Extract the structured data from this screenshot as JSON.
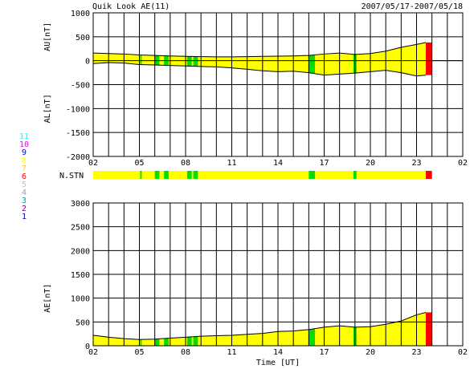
{
  "header": {
    "title": "Quik Look AE(11)",
    "date_range": "2007/05/17-2007/05/18"
  },
  "station_legend": {
    "levels": [
      "11",
      "10",
      "9",
      "8",
      "7",
      "6",
      "5",
      "4",
      "3",
      "2",
      "1"
    ],
    "colors": [
      "#00ffff",
      "#ff00ff",
      "#0000ff",
      "#ffff00",
      "#ffbf40",
      "#ff0000",
      "#c0c0c0",
      "#a0a0a0",
      "#00a0a0",
      "#800080",
      "#0000a0"
    ]
  },
  "colors": {
    "fill": "#ffff00",
    "green": "#00e000",
    "red": "#ff0000",
    "grid": "#000000"
  },
  "chart_data": [
    {
      "type": "area",
      "panel": "AU/AL",
      "ylabel_top": "AU[nT]",
      "ylabel_bottom": "AL[nT]",
      "ylim": [
        -2000,
        1000
      ],
      "yticks": [
        1000,
        500,
        0,
        -500,
        -1000,
        -1500,
        -2000
      ],
      "xticks": [
        "02",
        "05",
        "08",
        "11",
        "14",
        "17",
        "20",
        "23",
        "02"
      ],
      "x_hours_from_0200": [
        0,
        1,
        2,
        3,
        4,
        5,
        6,
        7,
        8,
        9,
        10,
        11,
        12,
        13,
        14,
        15,
        16,
        17,
        18,
        19,
        20,
        21,
        21.6
      ],
      "au": [
        160,
        150,
        140,
        120,
        110,
        100,
        90,
        85,
        80,
        80,
        85,
        90,
        95,
        100,
        110,
        140,
        160,
        130,
        150,
        200,
        280,
        340,
        380
      ],
      "al": [
        -60,
        -40,
        -50,
        -80,
        -90,
        -100,
        -110,
        -120,
        -130,
        -150,
        -180,
        -210,
        -230,
        -220,
        -250,
        -300,
        -280,
        -260,
        -230,
        -200,
        -250,
        -320,
        -300
      ]
    },
    {
      "type": "bar",
      "panel": "N.STN",
      "label": "N.STN",
      "segments": [
        {
          "start": 0,
          "end": 3.05,
          "level": "8"
        },
        {
          "start": 3.05,
          "end": 3.15,
          "level": "7"
        },
        {
          "start": 4.0,
          "end": 4.3,
          "level": "7"
        },
        {
          "start": 4.6,
          "end": 4.9,
          "level": "7"
        },
        {
          "start": 6.1,
          "end": 6.4,
          "level": "7"
        },
        {
          "start": 6.5,
          "end": 6.8,
          "level": "7"
        },
        {
          "start": 14.0,
          "end": 14.4,
          "level": "7"
        },
        {
          "start": 16.9,
          "end": 17.1,
          "level": "7"
        },
        {
          "start": 21.6,
          "end": 22.0,
          "level": "6"
        }
      ]
    },
    {
      "type": "area",
      "panel": "AE",
      "ylabel": "AE[nT]",
      "ylim": [
        0,
        3000
      ],
      "yticks": [
        3000,
        2500,
        2000,
        1500,
        1000,
        500,
        0
      ],
      "xticks": [
        "02",
        "05",
        "08",
        "11",
        "14",
        "17",
        "20",
        "23",
        "02"
      ],
      "xlabel": "Time [UT]",
      "x_hours_from_0200": [
        0,
        1,
        2,
        3,
        4,
        5,
        6,
        7,
        8,
        9,
        10,
        11,
        12,
        13,
        14,
        15,
        16,
        17,
        18,
        19,
        20,
        21,
        21.6
      ],
      "ae": [
        220,
        180,
        150,
        130,
        140,
        160,
        180,
        200,
        210,
        220,
        240,
        260,
        300,
        310,
        340,
        390,
        420,
        390,
        400,
        450,
        520,
        650,
        700
      ]
    }
  ]
}
